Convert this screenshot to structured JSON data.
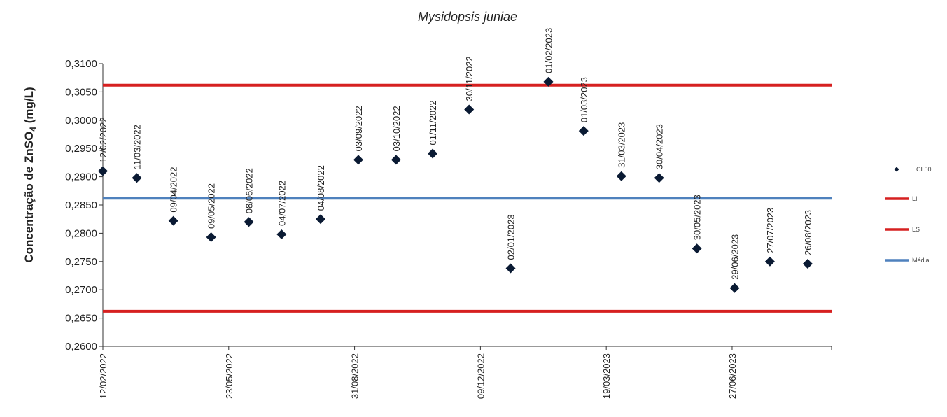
{
  "chart_data": {
    "type": "scatter",
    "title": "Mysidopsis juniae",
    "ylabel_prefix": "Concentração de ZnSO",
    "ylabel_sub": "4",
    "ylabel_suffix": " (mg/L)",
    "ylim": [
      0.26,
      0.31
    ],
    "yticks": [
      "0,2600",
      "0,2650",
      "0,2700",
      "0,2750",
      "0,2800",
      "0,2850",
      "0,2900",
      "0,2950",
      "0,3000",
      "0,3050",
      "0,3100"
    ],
    "xlim": [
      "12/02/2022",
      "14/09/2023"
    ],
    "xticks": [
      "12/02/2022",
      "23/05/2022",
      "31/08/2022",
      "09/12/2022",
      "19/03/2023",
      "27/06/2023"
    ],
    "grid": false,
    "legend_position": "right",
    "series": [
      {
        "name": "CL50",
        "color": "#0a1a33",
        "marker": "diamond",
        "points": [
          {
            "x": "12/02/2022",
            "label": "12/02/2022",
            "y": 0.291
          },
          {
            "x": "11/03/2022",
            "label": "11/03/2022",
            "y": 0.2898
          },
          {
            "x": "09/04/2022",
            "label": "09/04/2022",
            "y": 0.2822
          },
          {
            "x": "09/05/2022",
            "label": "09/05/2022",
            "y": 0.2793
          },
          {
            "x": "08/06/2022",
            "label": "08/06/2022",
            "y": 0.282
          },
          {
            "x": "04/07/2022",
            "label": "04/07/2022",
            "y": 0.2798
          },
          {
            "x": "04/08/2022",
            "label": "04/08/2022",
            "y": 0.2825
          },
          {
            "x": "03/09/2022",
            "label": "03/09/2022",
            "y": 0.293
          },
          {
            "x": "03/10/2022",
            "label": "03/10/2022",
            "y": 0.293
          },
          {
            "x": "01/11/2022",
            "label": "01/11/2022",
            "y": 0.2941
          },
          {
            "x": "30/11/2022",
            "label": "30/11/2022",
            "y": 0.3019
          },
          {
            "x": "02/01/2023",
            "label": "02/01/2023",
            "y": 0.2738
          },
          {
            "x": "01/02/2023",
            "label": "01/02/2023",
            "y": 0.3068
          },
          {
            "x": "01/03/2023",
            "label": "01/03/2023",
            "y": 0.2981
          },
          {
            "x": "31/03/2023",
            "label": "31/03/2023",
            "y": 0.2901
          },
          {
            "x": "30/04/2023",
            "label": "30/04/2023",
            "y": 0.2898
          },
          {
            "x": "30/05/2023",
            "label": "30/05/2023",
            "y": 0.2773
          },
          {
            "x": "29/06/2023",
            "label": "29/06/2023",
            "y": 0.2703
          },
          {
            "x": "27/07/2023",
            "label": "27/07/2023",
            "y": 0.275
          },
          {
            "x": "26/08/2023",
            "label": "26/08/2023",
            "y": 0.2746
          }
        ]
      }
    ],
    "lines": [
      {
        "name": "LI",
        "y": 0.2662,
        "color": "#d62020"
      },
      {
        "name": "LS",
        "y": 0.3062,
        "color": "#d62020"
      },
      {
        "name": "Média",
        "y": 0.2862,
        "color": "#4f81bd"
      }
    ]
  }
}
